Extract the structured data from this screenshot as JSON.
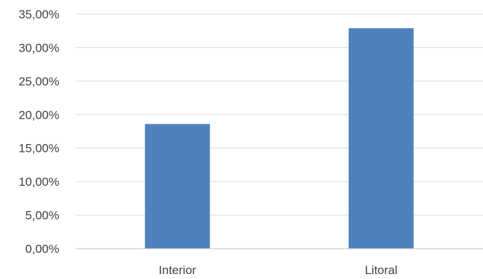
{
  "chart_data": {
    "type": "bar",
    "title": "",
    "xlabel": "",
    "ylabel": "",
    "categories": [
      "Interior",
      "Litoral"
    ],
    "values": [
      0.186,
      0.329
    ],
    "ylim": [
      0,
      0.35
    ],
    "yticks": [
      0,
      0.05,
      0.1,
      0.15,
      0.2,
      0.25,
      0.3,
      0.35
    ],
    "ytick_labels": [
      "0,00%",
      "5,00%",
      "10,00%",
      "15,00%",
      "20,00%",
      "25,00%",
      "30,00%",
      "35,00%"
    ],
    "grid": true,
    "legend": "none",
    "bar_color": "#4f81bd"
  }
}
